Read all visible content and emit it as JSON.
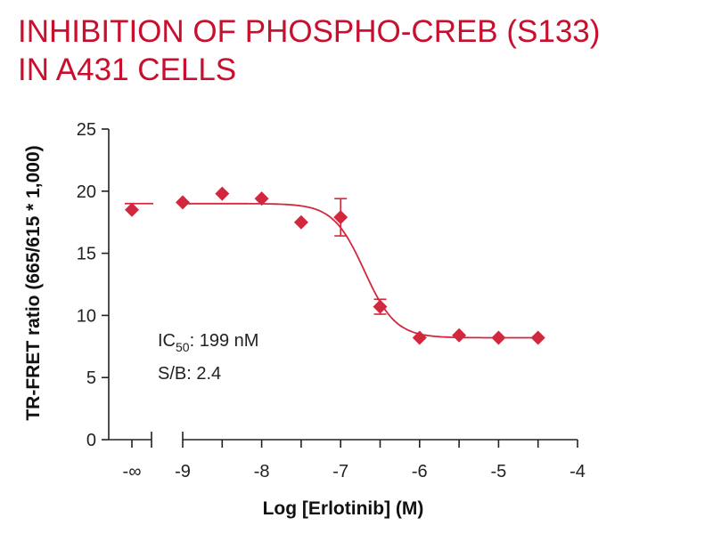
{
  "title": {
    "line1": "INHIBITION OF PHOSPHO-CREB (S133)",
    "line2": "IN A431 CELLS"
  },
  "colors": {
    "accent": "#c8102e",
    "data": "#d3273e",
    "axis": "#222222"
  },
  "chart_data": {
    "type": "scatter",
    "title": "INHIBITION OF PHOSPHO-CREB (S133) IN A431 CELLS",
    "xlabel": "Log [Erlotinib] (M)",
    "ylabel": "TR-FRET ratio (665/615 * 1,000)",
    "xlim": [
      -9,
      -4
    ],
    "ylim": [
      0,
      25
    ],
    "x_ticks": [
      "-9",
      "-8",
      "-7",
      "-6",
      "-5",
      "-4"
    ],
    "x_tick_values": [
      -9,
      -8,
      -7,
      -6,
      -5,
      -4
    ],
    "y_ticks": [
      "0",
      "5",
      "10",
      "15",
      "20",
      "25"
    ],
    "y_tick_values": [
      0,
      5,
      10,
      15,
      20,
      25
    ],
    "x_break_label": "-∞",
    "axis_break": true,
    "grid": false,
    "zero_point": {
      "x": "-∞",
      "y": 18.5
    },
    "series": [
      {
        "marker": "diamond",
        "x": [
          -9,
          -8.5,
          -8,
          -7.5,
          -7,
          -6.5,
          -6,
          -5.5,
          -5,
          -4.5
        ],
        "y": [
          19.1,
          19.8,
          19.4,
          17.5,
          17.9,
          10.7,
          8.2,
          8.4,
          8.2,
          8.2
        ],
        "error": [
          0,
          0,
          0,
          0,
          1.5,
          0.6,
          0,
          0,
          0,
          0
        ]
      }
    ],
    "fit": {
      "model": "4PL",
      "top": 19.0,
      "bottom": 8.2,
      "log_ic50": -6.7,
      "hill": 2.2
    },
    "annotations": {
      "ic50_prefix": "IC",
      "ic50_sub": "50",
      "ic50_value": ": 199 nM",
      "sb": "S/B: 2.4"
    }
  }
}
